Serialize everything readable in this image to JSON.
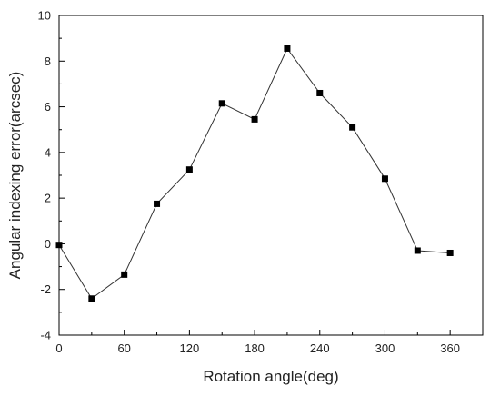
{
  "chart_data": {
    "type": "line",
    "xlabel": "Rotation angle(deg)",
    "ylabel": "Angular indexing error(arcsec)",
    "xlim": [
      0,
      390
    ],
    "ylim": [
      -4,
      10
    ],
    "xticks": [
      0,
      60,
      120,
      180,
      240,
      300,
      360
    ],
    "yticks": [
      -4,
      -2,
      0,
      2,
      4,
      6,
      8,
      10
    ],
    "grid": false,
    "series": [
      {
        "marker": "square",
        "color": "#000000",
        "x": [
          0,
          30,
          60,
          90,
          120,
          150,
          180,
          210,
          240,
          270,
          300,
          330,
          360
        ],
        "y": [
          -0.05,
          -2.4,
          -1.35,
          1.75,
          3.25,
          6.15,
          5.45,
          8.55,
          6.6,
          5.1,
          2.85,
          -0.3,
          -0.4
        ]
      }
    ]
  }
}
